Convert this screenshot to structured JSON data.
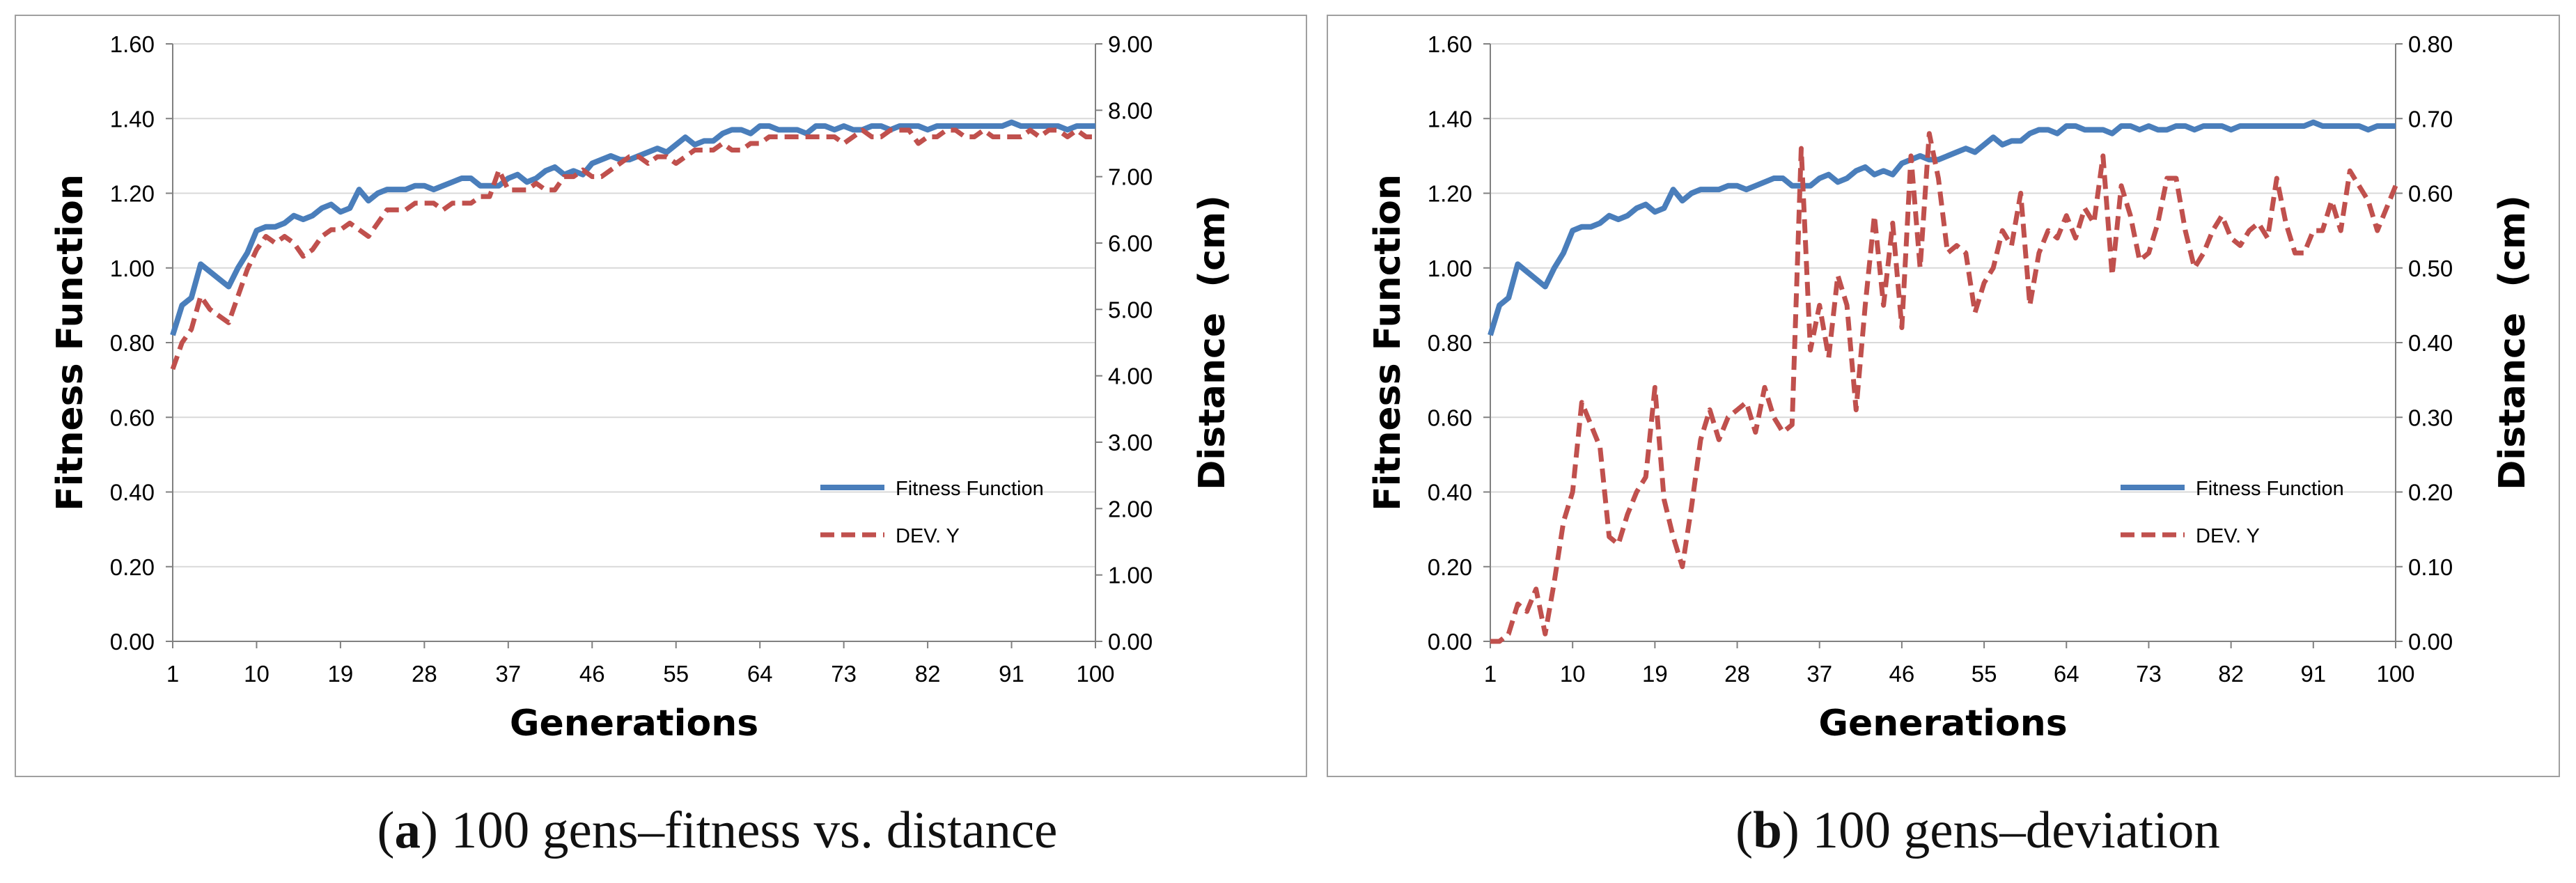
{
  "chart_data": [
    {
      "type": "line",
      "xlabel": "Generations",
      "ylabel": "Fitness Function",
      "y2label": "Distance  (cm)",
      "ylim": [
        0,
        1.6
      ],
      "y2lim": [
        0,
        9
      ],
      "xlim": [
        1,
        100
      ],
      "grid": "horizontal",
      "legend_position": "bottom-right",
      "x_ticks": [
        "1",
        "10",
        "19",
        "28",
        "37",
        "46",
        "55",
        "64",
        "73",
        "82",
        "91",
        "100"
      ],
      "y_ticks": [
        "0.00",
        "0.20",
        "0.40",
        "0.60",
        "0.80",
        "1.00",
        "1.20",
        "1.40",
        "1.60"
      ],
      "y2_ticks": [
        "0.00",
        "1.00",
        "2.00",
        "3.00",
        "4.00",
        "5.00",
        "6.00",
        "7.00",
        "8.00",
        "9.00"
      ],
      "series": [
        {
          "name": "Fitness Function",
          "axis": "left",
          "color": "#4a7ebb",
          "style": "solid",
          "values": [
            0.82,
            0.9,
            0.92,
            1.01,
            0.99,
            0.97,
            0.95,
            1.0,
            1.04,
            1.1,
            1.11,
            1.11,
            1.12,
            1.14,
            1.13,
            1.14,
            1.16,
            1.17,
            1.15,
            1.16,
            1.21,
            1.18,
            1.2,
            1.21,
            1.21,
            1.21,
            1.22,
            1.22,
            1.21,
            1.22,
            1.23,
            1.24,
            1.24,
            1.22,
            1.22,
            1.22,
            1.24,
            1.25,
            1.23,
            1.24,
            1.26,
            1.27,
            1.25,
            1.26,
            1.25,
            1.28,
            1.29,
            1.3,
            1.29,
            1.29,
            1.3,
            1.31,
            1.32,
            1.31,
            1.33,
            1.35,
            1.33,
            1.34,
            1.34,
            1.36,
            1.37,
            1.37,
            1.36,
            1.38,
            1.38,
            1.37,
            1.37,
            1.37,
            1.36,
            1.38,
            1.38,
            1.37,
            1.38,
            1.37,
            1.37,
            1.38,
            1.38,
            1.37,
            1.38,
            1.38,
            1.38,
            1.37,
            1.38,
            1.38,
            1.38,
            1.38,
            1.38,
            1.38,
            1.38,
            1.38,
            1.39,
            1.38,
            1.38,
            1.38,
            1.38,
            1.38,
            1.37,
            1.38,
            1.38,
            1.38
          ]
        },
        {
          "name": "DEV. Y",
          "axis": "right",
          "color": "#c0504d",
          "style": "dashed",
          "values": [
            4.1,
            4.5,
            4.7,
            5.2,
            5.0,
            4.9,
            4.8,
            5.2,
            5.6,
            5.9,
            6.1,
            6.0,
            6.1,
            6.0,
            5.8,
            5.9,
            6.1,
            6.2,
            6.2,
            6.3,
            6.2,
            6.1,
            6.3,
            6.5,
            6.5,
            6.5,
            6.6,
            6.6,
            6.6,
            6.5,
            6.6,
            6.6,
            6.6,
            6.7,
            6.7,
            7.1,
            6.8,
            6.8,
            6.8,
            6.9,
            6.8,
            6.8,
            7.0,
            7.0,
            7.1,
            7.0,
            7.0,
            7.1,
            7.2,
            7.3,
            7.3,
            7.2,
            7.3,
            7.3,
            7.2,
            7.3,
            7.4,
            7.4,
            7.4,
            7.5,
            7.4,
            7.4,
            7.5,
            7.5,
            7.6,
            7.6,
            7.6,
            7.6,
            7.6,
            7.6,
            7.6,
            7.6,
            7.5,
            7.6,
            7.7,
            7.6,
            7.6,
            7.7,
            7.7,
            7.7,
            7.5,
            7.6,
            7.6,
            7.7,
            7.7,
            7.6,
            7.6,
            7.7,
            7.6,
            7.6,
            7.6,
            7.6,
            7.7,
            7.6,
            7.7,
            7.7,
            7.6,
            7.7,
            7.6,
            7.6
          ]
        }
      ]
    },
    {
      "type": "line",
      "xlabel": "Generations",
      "ylabel": "Fitness Function",
      "y2label": "Distance  (cm)",
      "ylim": [
        0,
        1.6
      ],
      "y2lim": [
        0,
        0.8
      ],
      "xlim": [
        1,
        100
      ],
      "grid": "horizontal",
      "legend_position": "bottom-right",
      "x_ticks": [
        "1",
        "10",
        "19",
        "28",
        "37",
        "46",
        "55",
        "64",
        "73",
        "82",
        "91",
        "100"
      ],
      "y_ticks": [
        "0.00",
        "0.20",
        "0.40",
        "0.60",
        "0.80",
        "1.00",
        "1.20",
        "1.40",
        "1.60"
      ],
      "y2_ticks": [
        "0.00",
        "0.10",
        "0.20",
        "0.30",
        "0.40",
        "0.50",
        "0.60",
        "0.70",
        "0.80"
      ],
      "series": [
        {
          "name": "Fitness Function",
          "axis": "left",
          "color": "#4a7ebb",
          "style": "solid",
          "values": [
            0.82,
            0.9,
            0.92,
            1.01,
            0.99,
            0.97,
            0.95,
            1.0,
            1.04,
            1.1,
            1.11,
            1.11,
            1.12,
            1.14,
            1.13,
            1.14,
            1.16,
            1.17,
            1.15,
            1.16,
            1.21,
            1.18,
            1.2,
            1.21,
            1.21,
            1.21,
            1.22,
            1.22,
            1.21,
            1.22,
            1.23,
            1.24,
            1.24,
            1.22,
            1.22,
            1.22,
            1.24,
            1.25,
            1.23,
            1.24,
            1.26,
            1.27,
            1.25,
            1.26,
            1.25,
            1.28,
            1.29,
            1.3,
            1.29,
            1.29,
            1.3,
            1.31,
            1.32,
            1.31,
            1.33,
            1.35,
            1.33,
            1.34,
            1.34,
            1.36,
            1.37,
            1.37,
            1.36,
            1.38,
            1.38,
            1.37,
            1.37,
            1.37,
            1.36,
            1.38,
            1.38,
            1.37,
            1.38,
            1.37,
            1.37,
            1.38,
            1.38,
            1.37,
            1.38,
            1.38,
            1.38,
            1.37,
            1.38,
            1.38,
            1.38,
            1.38,
            1.38,
            1.38,
            1.38,
            1.38,
            1.39,
            1.38,
            1.38,
            1.38,
            1.38,
            1.38,
            1.37,
            1.38,
            1.38,
            1.38
          ]
        },
        {
          "name": "DEV. Y",
          "axis": "right",
          "color": "#c0504d",
          "style": "dashed",
          "values": [
            0.0,
            0.0,
            0.01,
            0.05,
            0.04,
            0.07,
            0.01,
            0.08,
            0.16,
            0.2,
            0.32,
            0.29,
            0.26,
            0.14,
            0.13,
            0.17,
            0.2,
            0.22,
            0.34,
            0.19,
            0.14,
            0.1,
            0.18,
            0.27,
            0.31,
            0.27,
            0.3,
            0.31,
            0.32,
            0.28,
            0.34,
            0.3,
            0.28,
            0.29,
            0.66,
            0.39,
            0.45,
            0.38,
            0.49,
            0.45,
            0.31,
            0.45,
            0.57,
            0.45,
            0.56,
            0.42,
            0.65,
            0.5,
            0.68,
            0.62,
            0.52,
            0.53,
            0.52,
            0.44,
            0.48,
            0.5,
            0.55,
            0.53,
            0.6,
            0.45,
            0.52,
            0.55,
            0.54,
            0.57,
            0.54,
            0.58,
            0.56,
            0.65,
            0.49,
            0.61,
            0.57,
            0.51,
            0.52,
            0.56,
            0.62,
            0.62,
            0.55,
            0.5,
            0.52,
            0.55,
            0.57,
            0.54,
            0.53,
            0.55,
            0.56,
            0.54,
            0.62,
            0.56,
            0.52,
            0.52,
            0.55,
            0.55,
            0.59,
            0.55,
            0.63,
            0.61,
            0.59,
            0.55,
            0.58,
            0.61
          ]
        }
      ]
    }
  ],
  "captions": [
    {
      "letter": "a",
      "text": " 100 gens–fitness vs. distance"
    },
    {
      "letter": "b",
      "text": " 100 gens–deviation"
    }
  ]
}
